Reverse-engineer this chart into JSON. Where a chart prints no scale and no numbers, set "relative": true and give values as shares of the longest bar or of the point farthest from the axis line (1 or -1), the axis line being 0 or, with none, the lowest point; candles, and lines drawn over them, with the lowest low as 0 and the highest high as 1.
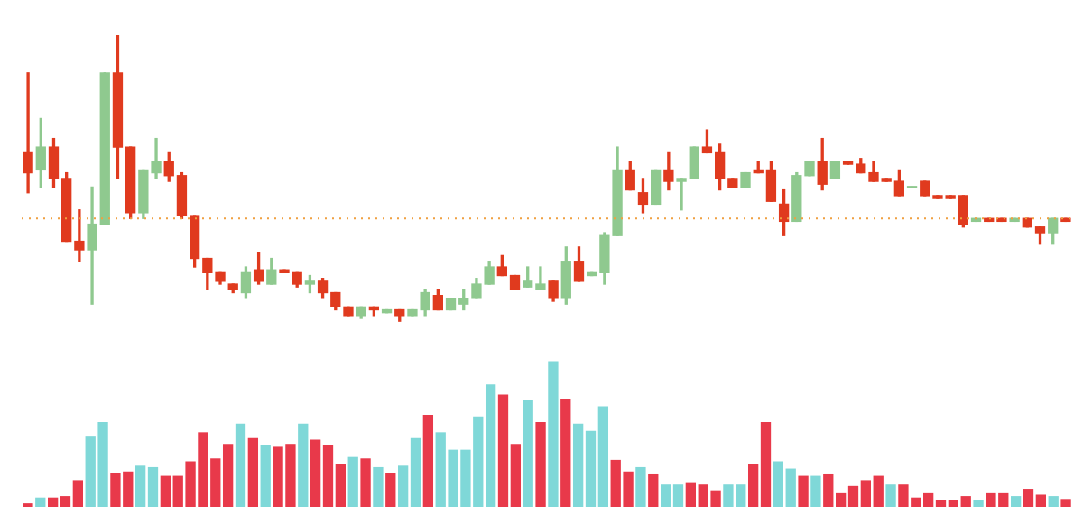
{
  "chart_data": [
    {
      "type": "candlestick",
      "relative": true,
      "tick_labels": false,
      "categories": [
        null,
        null,
        null,
        null,
        null,
        null,
        null,
        null,
        null,
        null,
        null,
        null,
        null,
        null,
        null,
        null,
        null,
        null,
        null,
        null,
        null,
        null,
        null,
        null,
        null,
        null,
        null,
        null,
        null,
        null,
        null,
        null,
        null,
        null,
        null,
        null,
        null,
        null,
        null,
        null,
        null,
        null,
        null,
        null,
        null,
        null,
        null,
        null,
        null,
        null,
        null,
        null,
        null,
        null,
        null,
        null,
        null,
        null,
        null,
        null,
        null,
        null,
        null,
        null,
        null,
        null,
        null,
        null,
        null,
        null,
        null,
        null,
        null,
        null,
        null,
        null,
        null,
        null,
        null,
        null,
        null,
        null
      ],
      "ohlc": [
        [
          0.59,
          0.87,
          0.45,
          0.52
        ],
        [
          0.53,
          0.71,
          0.47,
          0.61
        ],
        [
          0.61,
          0.64,
          0.47,
          0.5
        ],
        [
          0.5,
          0.52,
          0.28,
          0.28
        ],
        [
          0.28,
          0.39,
          0.21,
          0.25
        ],
        [
          0.25,
          0.47,
          0.06,
          0.34
        ],
        [
          0.34,
          0.87,
          0.34,
          0.87
        ],
        [
          0.87,
          1,
          0.5,
          0.61
        ],
        [
          0.61,
          0.61,
          0.36,
          0.38
        ],
        [
          0.38,
          0.53,
          0.36,
          0.53
        ],
        [
          0.52,
          0.64,
          0.5,
          0.56
        ],
        [
          0.56,
          0.59,
          0.49,
          0.51
        ],
        [
          0.51,
          0.52,
          0.36,
          0.37
        ],
        [
          0.37,
          0.37,
          0.19,
          0.22
        ],
        [
          0.22,
          0.22,
          0.11,
          0.17
        ],
        [
          0.17,
          0.17,
          0.13,
          0.14
        ],
        [
          0.13,
          0.13,
          0.1,
          0.11
        ],
        [
          0.1,
          0.19,
          0.08,
          0.17
        ],
        [
          0.18,
          0.24,
          0.13,
          0.14
        ],
        [
          0.13,
          0.22,
          0.13,
          0.18
        ],
        [
          0.18,
          0.18,
          0.17,
          0.17
        ],
        [
          0.17,
          0.17,
          0.12,
          0.13
        ],
        [
          0.13,
          0.16,
          0.1,
          0.14
        ],
        [
          0.14,
          0.15,
          0.08,
          0.1
        ],
        [
          0.1,
          0.1,
          0.04,
          0.05
        ],
        [
          0.05,
          0.05,
          0.02,
          0.02
        ],
        [
          0.02,
          0.05,
          0.01,
          0.05
        ],
        [
          0.05,
          0.05,
          0.02,
          0.04
        ],
        [
          0.03,
          0.04,
          0.03,
          0.04
        ],
        [
          0.04,
          0.04,
          0,
          0.02
        ],
        [
          0.02,
          0.04,
          0.02,
          0.04
        ],
        [
          0.04,
          0.11,
          0.02,
          0.1
        ],
        [
          0.09,
          0.11,
          0.04,
          0.04
        ],
        [
          0.04,
          0.08,
          0.04,
          0.08
        ],
        [
          0.06,
          0.11,
          0.04,
          0.08
        ],
        [
          0.08,
          0.15,
          0.08,
          0.13
        ],
        [
          0.13,
          0.21,
          0.13,
          0.19
        ],
        [
          0.19,
          0.23,
          0.16,
          0.16
        ],
        [
          0.16,
          0.16,
          0.11,
          0.11
        ],
        [
          0.12,
          0.19,
          0.12,
          0.14
        ],
        [
          0.11,
          0.19,
          0.11,
          0.13
        ],
        [
          0.14,
          0.14,
          0.07,
          0.08
        ],
        [
          0.08,
          0.26,
          0.06,
          0.21
        ],
        [
          0.21,
          0.26,
          0.14,
          0.14
        ],
        [
          0.16,
          0.17,
          0.16,
          0.17
        ],
        [
          0.17,
          0.31,
          0.13,
          0.3
        ],
        [
          0.3,
          0.61,
          0.3,
          0.53
        ],
        [
          0.53,
          0.56,
          0.46,
          0.46
        ],
        [
          0.45,
          0.5,
          0.38,
          0.41
        ],
        [
          0.41,
          0.53,
          0.41,
          0.53
        ],
        [
          0.53,
          0.59,
          0.46,
          0.49
        ],
        [
          0.49,
          0.5,
          0.39,
          0.5
        ],
        [
          0.5,
          0.61,
          0.5,
          0.61
        ],
        [
          0.61,
          0.67,
          0.59,
          0.59
        ],
        [
          0.59,
          0.62,
          0.46,
          0.5
        ],
        [
          0.5,
          0.5,
          0.47,
          0.47
        ],
        [
          0.47,
          0.52,
          0.47,
          0.52
        ],
        [
          0.53,
          0.56,
          0.52,
          0.52
        ],
        [
          0.53,
          0.56,
          0.42,
          0.42
        ],
        [
          0.41,
          0.46,
          0.3,
          0.35
        ],
        [
          0.35,
          0.52,
          0.35,
          0.51
        ],
        [
          0.51,
          0.56,
          0.51,
          0.56
        ],
        [
          0.56,
          0.64,
          0.46,
          0.48
        ],
        [
          0.5,
          0.56,
          0.5,
          0.56
        ],
        [
          0.56,
          0.56,
          0.55,
          0.55
        ],
        [
          0.55,
          0.57,
          0.52,
          0.52
        ],
        [
          0.52,
          0.56,
          0.49,
          0.49
        ],
        [
          0.5,
          0.5,
          0.49,
          0.49
        ],
        [
          0.49,
          0.53,
          0.44,
          0.44
        ],
        [
          0.47,
          0.47,
          0.47,
          0.47
        ],
        [
          0.49,
          0.49,
          0.44,
          0.44
        ],
        [
          0.44,
          0.44,
          0.43,
          0.43
        ],
        [
          0.44,
          0.44,
          0.43,
          0.43
        ],
        [
          0.44,
          0.44,
          0.33,
          0.34
        ],
        [
          0.35,
          0.36,
          0.35,
          0.36
        ],
        [
          0.36,
          0.36,
          0.35,
          0.35
        ],
        [
          0.36,
          0.36,
          0.35,
          0.35
        ],
        [
          0.35,
          0.36,
          0.35,
          0.36
        ],
        [
          0.36,
          0.36,
          0.33,
          0.33
        ],
        [
          0.33,
          0.33,
          0.27,
          0.31
        ],
        [
          0.31,
          0.36,
          0.27,
          0.36
        ],
        [
          0.36,
          0.36,
          0.35,
          0.35
        ]
      ],
      "colors": [
        "#e03a1e",
        "#8fc98f",
        "#e03a1e",
        "#e03a1e",
        "#e03a1e",
        "#8fc98f",
        "#8fc98f",
        "#e03a1e",
        "#e03a1e",
        "#8fc98f",
        "#8fc98f",
        "#e03a1e",
        "#e03a1e",
        "#e03a1e",
        "#e03a1e",
        "#e03a1e",
        "#e03a1e",
        "#8fc98f",
        "#e03a1e",
        "#8fc98f",
        "#e03a1e",
        "#e03a1e",
        "#8fc98f",
        "#e03a1e",
        "#e03a1e",
        "#e03a1e",
        "#8fc98f",
        "#e03a1e",
        "#8fc98f",
        "#e03a1e",
        "#8fc98f",
        "#8fc98f",
        "#e03a1e",
        "#8fc98f",
        "#8fc98f",
        "#8fc98f",
        "#8fc98f",
        "#e03a1e",
        "#e03a1e",
        "#8fc98f",
        "#8fc98f",
        "#e03a1e",
        "#8fc98f",
        "#e03a1e",
        "#8fc98f",
        "#8fc98f",
        "#8fc98f",
        "#e03a1e",
        "#e03a1e",
        "#8fc98f",
        "#e03a1e",
        "#8fc98f",
        "#8fc98f",
        "#e03a1e",
        "#e03a1e",
        "#e03a1e",
        "#8fc98f",
        "#e03a1e",
        "#e03a1e",
        "#e03a1e",
        "#8fc98f",
        "#8fc98f",
        "#e03a1e",
        "#8fc98f",
        "#e03a1e",
        "#e03a1e",
        "#e03a1e",
        "#e03a1e",
        "#e03a1e",
        "#8fc98f",
        "#e03a1e",
        "#e03a1e",
        "#e03a1e",
        "#e03a1e",
        "#8fc98f",
        "#e03a1e",
        "#e03a1e",
        "#8fc98f",
        "#e03a1e",
        "#e03a1e",
        "#8fc98f",
        "#e03a1e"
      ],
      "ref_lines": [
        {
          "axis": "y",
          "value": 0.36,
          "color": "#f0a040",
          "line_style": "dotted"
        }
      ]
    },
    {
      "type": "bar",
      "relative": true,
      "tick_labels": false,
      "categories": [
        null,
        null,
        null,
        null,
        null,
        null,
        null,
        null,
        null,
        null,
        null,
        null,
        null,
        null,
        null,
        null,
        null,
        null,
        null,
        null,
        null,
        null,
        null,
        null,
        null,
        null,
        null,
        null,
        null,
        null,
        null,
        null,
        null,
        null,
        null,
        null,
        null,
        null,
        null,
        null,
        null,
        null,
        null,
        null,
        null,
        null,
        null,
        null,
        null,
        null,
        null,
        null,
        null,
        null,
        null,
        null,
        null,
        null,
        null,
        null,
        null,
        null,
        null,
        null,
        null,
        null,
        null,
        null,
        null,
        null,
        null,
        null,
        null,
        null,
        null,
        null,
        null,
        null,
        null,
        null,
        null,
        null,
        null,
        null
      ],
      "values": [
        0.02,
        0.06,
        0.06,
        0.07,
        0.18,
        0.48,
        0.58,
        0.23,
        0.24,
        0.28,
        0.27,
        0.21,
        0.21,
        0.31,
        0.51,
        0.33,
        0.43,
        0.57,
        0.47,
        0.42,
        0.41,
        0.43,
        0.57,
        0.46,
        0.42,
        0.29,
        0.34,
        0.33,
        0.27,
        0.23,
        0.28,
        0.47,
        0.63,
        0.51,
        0.39,
        0.39,
        0.62,
        0.84,
        0.77,
        0.43,
        0.73,
        0.58,
        1,
        0.74,
        0.57,
        0.52,
        0.69,
        0.32,
        0.24,
        0.27,
        0.22,
        0.15,
        0.15,
        0.16,
        0.15,
        0.11,
        0.15,
        0.15,
        0.29,
        0.58,
        0.31,
        0.26,
        0.21,
        0.21,
        0.22,
        0.09,
        0.14,
        0.18,
        0.21,
        0.15,
        0.15,
        0.06,
        0.09,
        0.04,
        0.04,
        0.07,
        0.04,
        0.09,
        0.09,
        0.07,
        0.12,
        0.08,
        0.07,
        0.05
      ],
      "colors": [
        "#e8394a",
        "#7fd8d8",
        "#e8394a",
        "#e8394a",
        "#e8394a",
        "#7fd8d8",
        "#7fd8d8",
        "#e8394a",
        "#e8394a",
        "#7fd8d8",
        "#7fd8d8",
        "#e8394a",
        "#e8394a",
        "#e8394a",
        "#e8394a",
        "#e8394a",
        "#e8394a",
        "#7fd8d8",
        "#e8394a",
        "#7fd8d8",
        "#e8394a",
        "#e8394a",
        "#7fd8d8",
        "#e8394a",
        "#e8394a",
        "#e8394a",
        "#7fd8d8",
        "#e8394a",
        "#7fd8d8",
        "#e8394a",
        "#7fd8d8",
        "#7fd8d8",
        "#e8394a",
        "#7fd8d8",
        "#7fd8d8",
        "#7fd8d8",
        "#7fd8d8",
        "#7fd8d8",
        "#e8394a",
        "#e8394a",
        "#7fd8d8",
        "#e8394a",
        "#7fd8d8",
        "#e8394a",
        "#7fd8d8",
        "#7fd8d8",
        "#7fd8d8",
        "#e8394a",
        "#e8394a",
        "#7fd8d8",
        "#e8394a",
        "#7fd8d8",
        "#7fd8d8",
        "#e8394a",
        "#e8394a",
        "#e8394a",
        "#7fd8d8",
        "#7fd8d8",
        "#e8394a",
        "#e8394a",
        "#7fd8d8",
        "#7fd8d8",
        "#e8394a",
        "#7fd8d8",
        "#e8394a",
        "#e8394a",
        "#e8394a",
        "#e8394a",
        "#e8394a",
        "#7fd8d8",
        "#e8394a",
        "#e8394a",
        "#e8394a",
        "#e8394a",
        "#e8394a",
        "#e8394a",
        "#7fd8d8",
        "#e8394a",
        "#e8394a",
        "#7fd8d8",
        "#e8394a",
        "#e8394a",
        "#7fd8d8",
        "#e8394a"
      ]
    }
  ]
}
